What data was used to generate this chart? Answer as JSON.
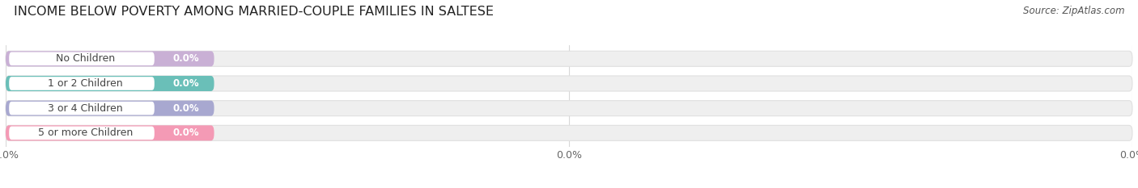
{
  "title": "INCOME BELOW POVERTY AMONG MARRIED-COUPLE FAMILIES IN SALTESE",
  "source": "Source: ZipAtlas.com",
  "categories": [
    "No Children",
    "1 or 2 Children",
    "3 or 4 Children",
    "5 or more Children"
  ],
  "values": [
    0.0,
    0.0,
    0.0,
    0.0
  ],
  "bar_colors": [
    "#c9b0d5",
    "#6abfb8",
    "#a8a8d0",
    "#f49ab5"
  ],
  "title_fontsize": 11.5,
  "source_fontsize": 8.5,
  "background_color": "#ffffff",
  "bar_track_color": "#efefef",
  "bar_track_edge": "#e0e0e0",
  "white_pill_color": "#ffffff",
  "label_text_color": "#444444",
  "value_text_color": "#ffffff",
  "grid_color": "#d8d8d8",
  "tick_label_color": "#666666",
  "tick_label_fontsize": 9
}
